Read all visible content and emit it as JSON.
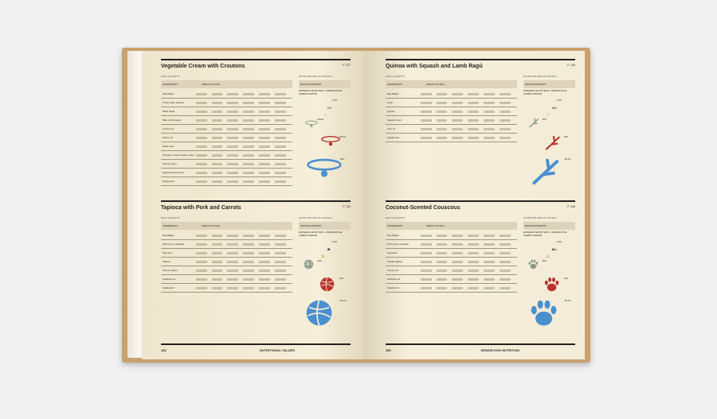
{
  "left_page": {
    "footer": {
      "number": "182",
      "section": "NUTRITIONAL VALUES"
    },
    "recipes": [
      {
        "title": "Vegetable Cream with Croutons",
        "page_ref": "P. 127",
        "daily_quantity": "DAILY QUANTITY",
        "col_ingredients": "INGREDIENTS",
        "col_weight": "WEIGHT OF DOG",
        "nutrition_label": "NUTRITION PER 3½ OZ/100 G",
        "macro_label": "MACRONUTRIENTS",
        "legend": "■ MINERALS ■ PROTEINS □ FIBER ■ FATS ■ CARBOHYDRATES",
        "rows": [
          "Dog Weight",
          "Turkey thigh, skinless",
          "White bread",
          "Plain nonfat yogurt",
          "Coconut oil",
          "Salmon oil",
          "Rolled oats",
          "Pumpkin or other squash, diced",
          "Carrots, diced",
          "Flaxseed (linseed) oil",
          "Supplement"
        ],
        "icon": "collar",
        "percents": [
          "1.0%",
          "3%",
          "20.9%",
          "25.0%",
          "50%"
        ]
      },
      {
        "title": "Tapioca with Pork and Carrots",
        "page_ref": "P. 129",
        "daily_quantity": "DAILY QUANTITY",
        "col_ingredients": "INGREDIENTS",
        "col_weight": "WEIGHT OF DOG",
        "nutrition_label": "NUTRITION PER 3½ OZ/100 G",
        "macro_label": "MACRONUTRIENTS",
        "legend": "■ MINERALS ■ PROTEINS □ FIBER ■ FATS ■ CARBOHYDRATES",
        "rows": [
          "Dog Weight",
          "Pork neck or shoulder",
          "Pig's liver",
          "Tapioca",
          "Carrots, grated",
          "Sunflower oil",
          "Supplement"
        ],
        "icon": "ball",
        "percents": [
          "1.0%",
          "3%",
          "12%",
          "24%",
          "60.1%"
        ]
      }
    ]
  },
  "right_page": {
    "footer": {
      "number": "183",
      "section": "SENIOR DOG NUTRITION"
    },
    "recipes": [
      {
        "title": "Quinoa with Squash and Lamb Ragù",
        "page_ref": "P. 128",
        "daily_quantity": "DAILY QUANTITY",
        "col_ingredients": "INGREDIENTS",
        "col_weight": "WEIGHT OF DOG",
        "nutrition_label": "NUTRITION PER 3½ OZ/100 G",
        "macro_label": "MACRONUTRIENTS",
        "legend": "■ MINERALS ■ PROTEINS □ FIBER ■ FATS ■ CARBOHYDRATES",
        "rows": [
          "Dog Weight",
          "Lamb",
          "Quinoa",
          "Squash, diced",
          "Corn oil",
          "Supplement"
        ],
        "icon": "stick",
        "percents": [
          "2.2%",
          "5.4%",
          "10%",
          "26%",
          "56.7%"
        ]
      },
      {
        "title": "Coconut-Scented Couscous",
        "page_ref": "P. 133",
        "daily_quantity": "DAILY QUANTITY",
        "col_ingredients": "INGREDIENTS",
        "col_weight": "WEIGHT OF DOG",
        "nutrition_label": "NUTRITION PER 3½ OZ/100 G",
        "macro_label": "MACRONUTRIENTS",
        "legend": "■ MINERALS ■ PROTEINS □ FIBER ■ FATS ■ CARBOHYDRATES",
        "rows": [
          "Dog Weight",
          "Pork neck or shoulder",
          "Couscous",
          "Chicken giblets",
          "Coconut oil",
          "Sunflower oil",
          "Supplement"
        ],
        "icon": "paw",
        "percents": [
          "2.2%",
          "4.3%",
          "10%",
          "26%",
          "56.7%"
        ]
      }
    ]
  },
  "colors": {
    "page": "#f4ecd6",
    "cover": "#c9a16e",
    "minerals": "#444444",
    "proteins": "#d9c27a",
    "fiber": "#8a9a8a",
    "fats": "#b8342e",
    "carbohydrates": "#4a8fcf"
  }
}
